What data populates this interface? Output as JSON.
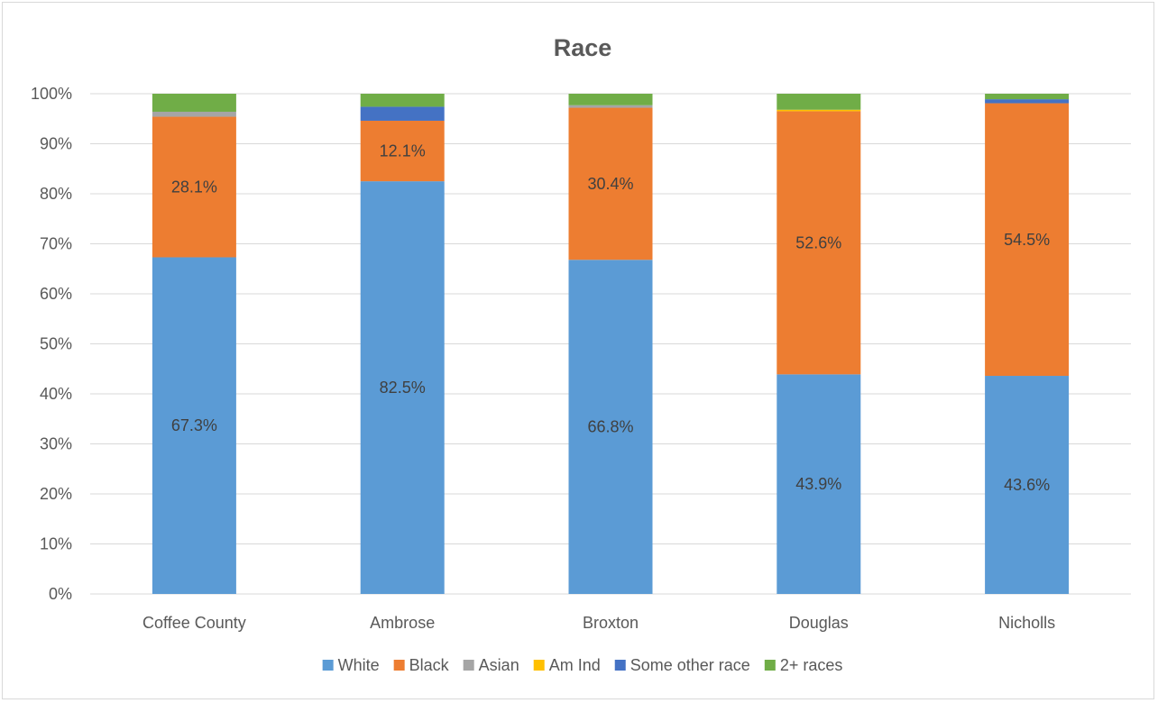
{
  "chart_data": {
    "type": "bar",
    "stacked": true,
    "title": "Race",
    "xlabel": "",
    "ylabel": "",
    "ylim": [
      0,
      100
    ],
    "ytick_format": "{v}%",
    "yticks": [
      0,
      10,
      20,
      30,
      40,
      50,
      60,
      70,
      80,
      90,
      100
    ],
    "grid": true,
    "legend_position": "bottom",
    "categories": [
      "Coffee County",
      "Ambrose",
      "Broxton",
      "Douglas",
      "Nicholls"
    ],
    "series": [
      {
        "name": "White",
        "color": "#5b9bd5",
        "values": [
          67.3,
          82.5,
          66.8,
          43.9,
          43.6
        ],
        "labels": [
          "67.3%",
          "82.5%",
          "66.8%",
          "43.9%",
          "43.6%"
        ]
      },
      {
        "name": "Black",
        "color": "#ed7d31",
        "values": [
          28.1,
          12.1,
          30.4,
          52.6,
          54.5
        ],
        "labels": [
          "28.1%",
          "12.1%",
          "30.4%",
          "52.6%",
          "54.5%"
        ]
      },
      {
        "name": "Asian",
        "color": "#a5a5a5",
        "values": [
          1.0,
          0.0,
          0.5,
          0.0,
          0.0
        ],
        "labels": []
      },
      {
        "name": "Am Ind",
        "color": "#ffc000",
        "values": [
          0.0,
          0.0,
          0.0,
          0.3,
          0.0
        ],
        "labels": []
      },
      {
        "name": "Some other race",
        "color": "#4472c4",
        "values": [
          0.0,
          2.8,
          0.0,
          0.0,
          0.8
        ],
        "labels": []
      },
      {
        "name": "2+ races",
        "color": "#70ad47",
        "values": [
          3.6,
          2.6,
          2.3,
          3.2,
          1.1
        ],
        "labels": []
      }
    ]
  }
}
